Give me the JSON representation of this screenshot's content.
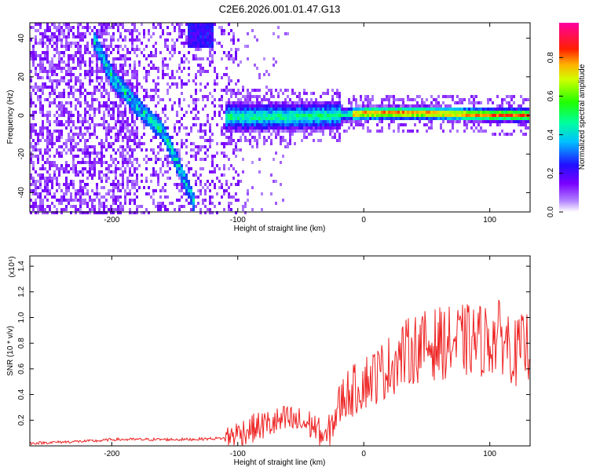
{
  "chart_data": [
    {
      "type": "heatmap",
      "title": "C2E6.2026.001.01.47.G13",
      "xlabel": "Height of straight line (km)",
      "ylabel": "Frequency (Hz)",
      "xlim": [
        -265,
        132
      ],
      "ylim": [
        -50,
        48
      ],
      "xticks": [
        -200,
        -100,
        0,
        100
      ],
      "yticks": [
        -40,
        -20,
        0,
        20,
        40
      ],
      "colorbar": {
        "label": "Normalized spectral amplitude",
        "range": [
          0,
          0.98
        ],
        "ticks": [
          0,
          0.2,
          0.4,
          0.6,
          0.8
        ],
        "colormap": "rainbow (purple-blue-cyan-green-yellow-red-magenta)"
      },
      "features": [
        {
          "name": "descending trace",
          "points": [
            [
              -215,
              40
            ],
            [
              -200,
              20
            ],
            [
              -180,
              5
            ],
            [
              -160,
              -8
            ],
            [
              -148,
              -25
            ],
            [
              -135,
              -45
            ]
          ]
        },
        {
          "name": "steady trace",
          "points": [
            [
              -110,
              0
            ],
            [
              -60,
              0
            ],
            [
              -20,
              1
            ],
            [
              0,
              2
            ],
            [
              50,
              2
            ],
            [
              100,
              1
            ],
            [
              130,
              1
            ]
          ]
        }
      ]
    },
    {
      "type": "line",
      "xlabel": "Height of straight line (km)",
      "ylabel": "SNR (10 * v/v)",
      "y_multiplier": "(x10⁴)",
      "xlim": [
        -265,
        132
      ],
      "ylim": [
        0,
        1.48
      ],
      "xticks": [
        -200,
        -100,
        0,
        100
      ],
      "yticks": [
        0.2,
        0.4,
        0.6,
        0.8,
        1.0,
        1.2,
        1.4
      ],
      "series": [
        {
          "color": "#ee2222",
          "x": [
            -265,
            -240,
            -210,
            -200,
            -170,
            -140,
            -110,
            -100,
            -90,
            -80,
            -70,
            -60,
            -50,
            -40,
            -30,
            -20,
            -15,
            -10,
            -5,
            0,
            10,
            20,
            30,
            40,
            50,
            60,
            70,
            80,
            90,
            100,
            110,
            115,
            120,
            125,
            132
          ],
          "y": [
            0.02,
            0.03,
            0.04,
            0.05,
            0.05,
            0.05,
            0.06,
            0.1,
            0.13,
            0.16,
            0.18,
            0.2,
            0.18,
            0.16,
            0.05,
            0.3,
            0.4,
            0.42,
            0.45,
            0.5,
            0.55,
            0.62,
            0.7,
            0.76,
            0.78,
            0.8,
            0.8,
            0.82,
            0.82,
            0.83,
            0.85,
            0.8,
            0.72,
            0.75,
            0.8
          ]
        }
      ]
    }
  ]
}
